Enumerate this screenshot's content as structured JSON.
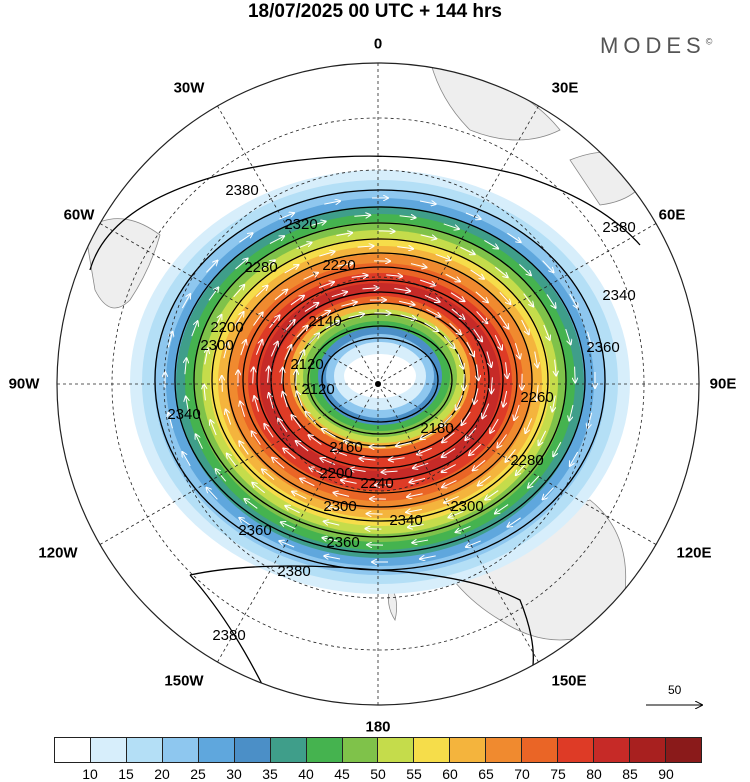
{
  "title": "18/07/2025  00 UTC  + 144 hrs",
  "brand": "MODES",
  "brand_mark": "©",
  "longitude_labels": {
    "n": "0",
    "e30": "30E",
    "e60": "60E",
    "e90": "90E",
    "e120": "120E",
    "e150": "150E",
    "s": "180",
    "w150": "150W",
    "w120": "120W",
    "w90": "90W",
    "w60": "60W",
    "w30": "30W"
  },
  "contour_labels": {
    "c2120": "2120",
    "c2140": "2140",
    "c2160": "2160",
    "c2180": "2180",
    "c2200": "2200",
    "c2220": "2220",
    "c2240": "2240",
    "c2260": "2260",
    "c2280": "2280",
    "c2300": "2300",
    "c2320": "2320",
    "c2340": "2340",
    "c2360": "2360",
    "c2380": "2380"
  },
  "vector_reference": "50",
  "colorbar": {
    "colors": [
      "#ffffff",
      "#d7eefb",
      "#b4dff6",
      "#8ec7ef",
      "#5fa7dd",
      "#4b8fc7",
      "#3f9e8a",
      "#45b34f",
      "#7fc24a",
      "#c5dc4b",
      "#f6dd4a",
      "#f4b43d",
      "#f08a2f",
      "#ea6526",
      "#de3b26",
      "#c62a27",
      "#a8201f",
      "#8a1a1a"
    ],
    "ticks": [
      "10",
      "15",
      "20",
      "25",
      "30",
      "35",
      "40",
      "45",
      "50",
      "55",
      "60",
      "65",
      "70",
      "75",
      "80",
      "85",
      "90"
    ]
  }
}
